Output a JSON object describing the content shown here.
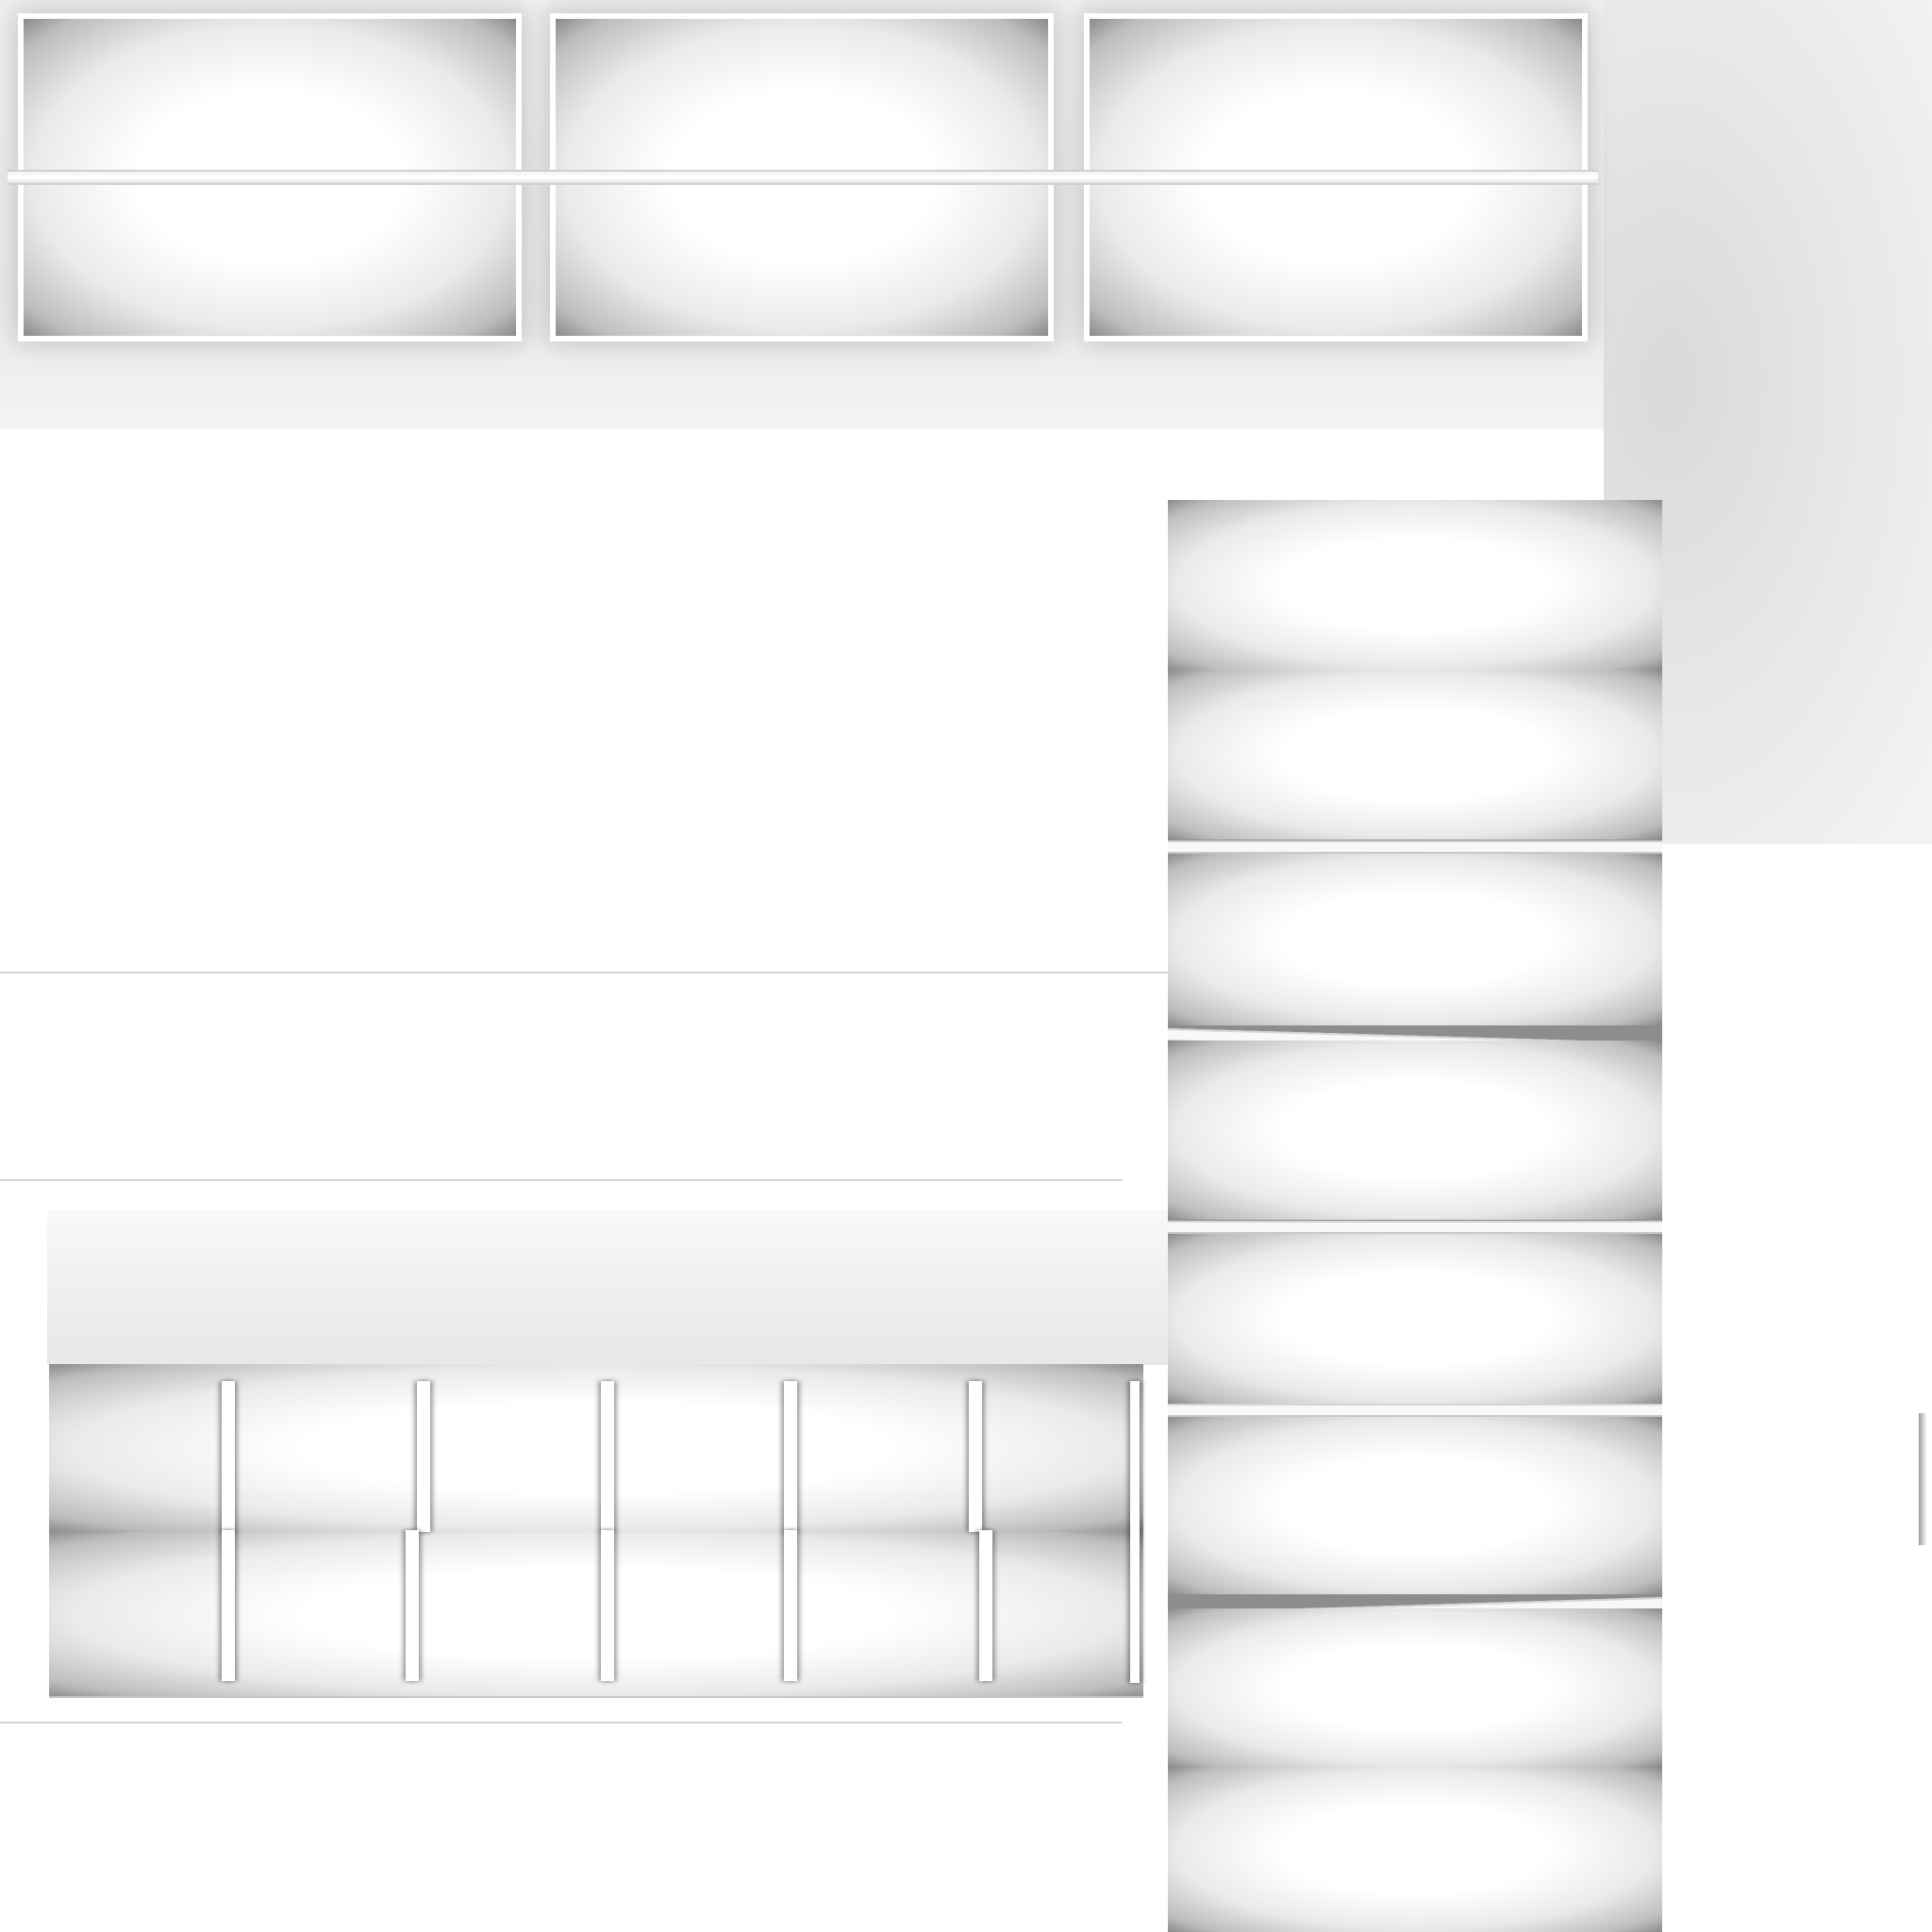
{
  "scene": {
    "background": "#ffffff",
    "tile_shade": "#8a8a8a",
    "tile_highlight": "#ffffff",
    "seam_color": "#d4d4d4",
    "top_row_tiles": 3,
    "right_column_tiles": 8,
    "bottom_strip_divisions": 6
  }
}
